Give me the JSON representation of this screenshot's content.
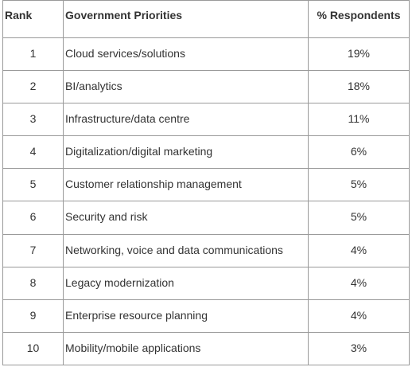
{
  "table": {
    "headers": [
      "Rank",
      "Government Priorities",
      "% Respondents"
    ],
    "rows": [
      {
        "rank": "1",
        "priority": "Cloud services/solutions",
        "pct": "19%"
      },
      {
        "rank": "2",
        "priority": "BI/analytics",
        "pct": "18%"
      },
      {
        "rank": "3",
        "priority": "Infrastructure/data centre",
        "pct": "11%"
      },
      {
        "rank": "4",
        "priority": "Digitalization/digital marketing",
        "pct": "6%"
      },
      {
        "rank": "5",
        "priority": "Customer relationship management",
        "pct": "5%"
      },
      {
        "rank": "6",
        "priority": "Security and risk",
        "pct": "5%"
      },
      {
        "rank": "7",
        "priority": "Networking, voice and data communications",
        "pct": "4%"
      },
      {
        "rank": "8",
        "priority": "Legacy modernization",
        "pct": "4%"
      },
      {
        "rank": "9",
        "priority": "Enterprise resource planning",
        "pct": "4%"
      },
      {
        "rank": "10",
        "priority": "Mobility/mobile applications",
        "pct": "3%"
      }
    ]
  }
}
